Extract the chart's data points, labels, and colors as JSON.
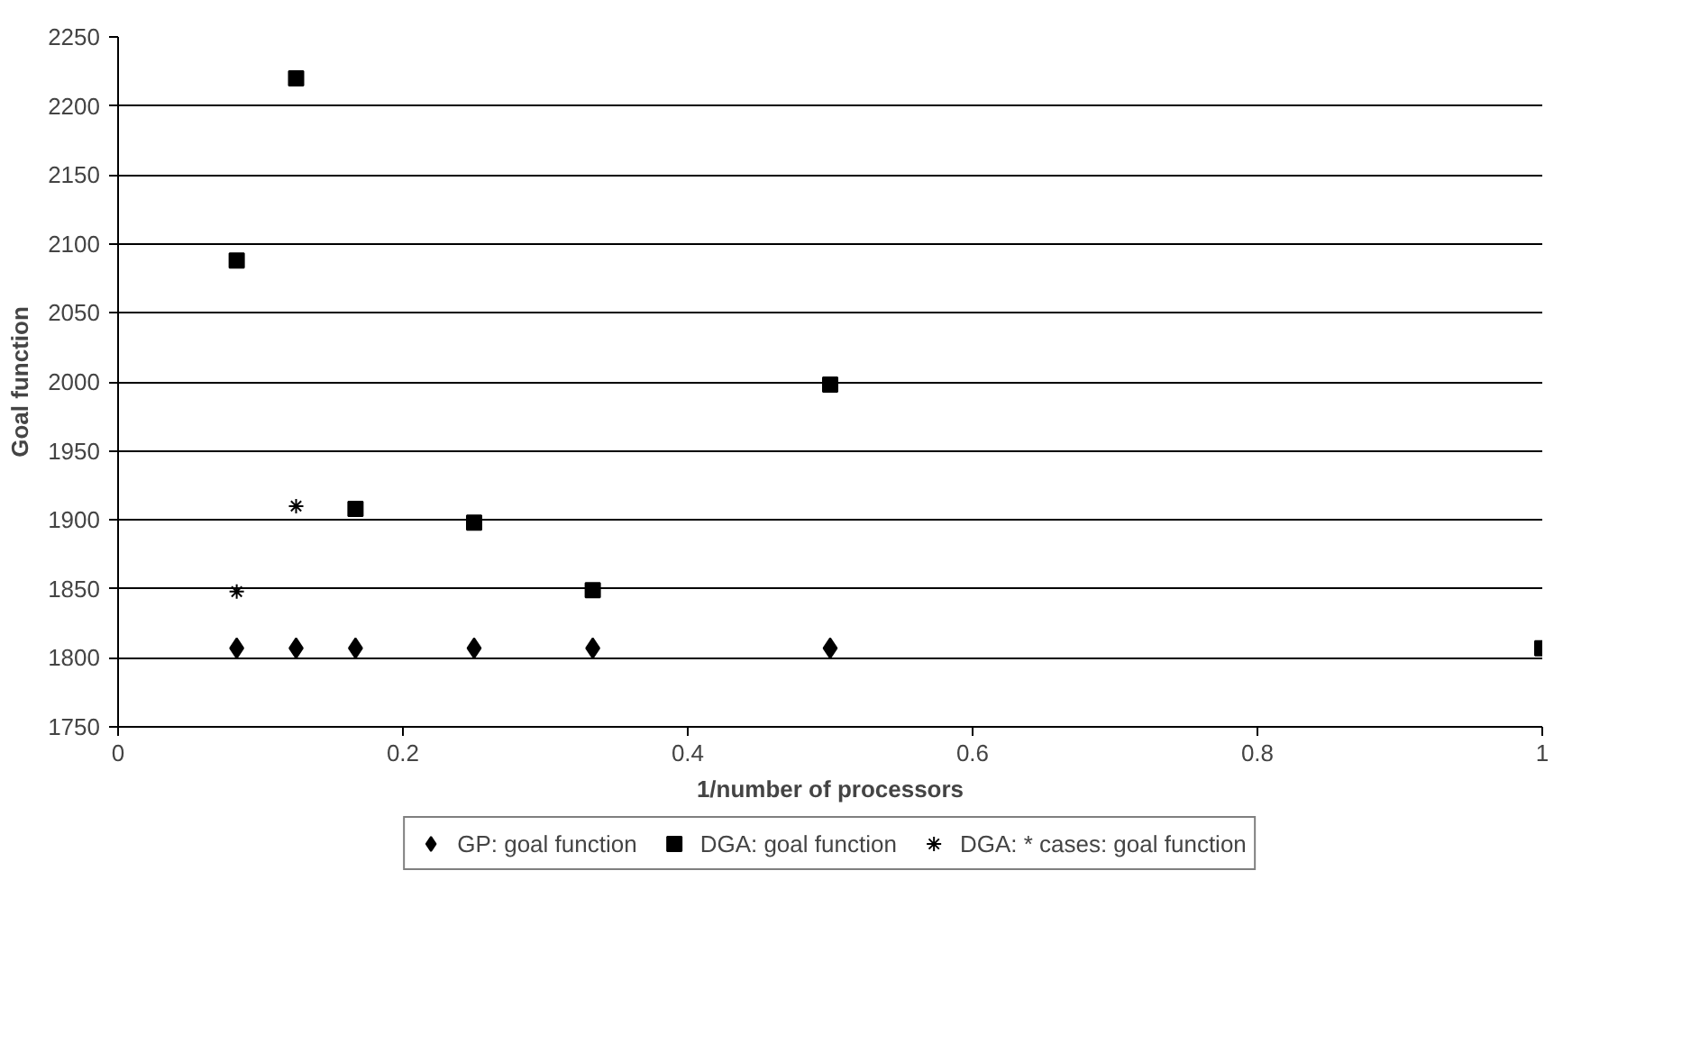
{
  "chart_data": {
    "type": "scatter",
    "xlabel": "1/number of processors",
    "ylabel": "Goal function",
    "x": [
      0.0833,
      0.125,
      0.1667,
      0.25,
      0.3333,
      0.5,
      1
    ],
    "series": [
      {
        "name": "GP: goal function",
        "color": "#000000",
        "marker": "diamond",
        "x": [
          0.0833,
          0.125,
          0.1667,
          0.25,
          0.3333,
          0.5
        ],
        "values": [
          1807,
          1807,
          1807,
          1807,
          1807,
          1807
        ]
      },
      {
        "name": "DGA: goal function",
        "color": "#000000",
        "marker": "square",
        "values": [
          2088,
          2220,
          1908,
          1898,
          1849,
          1998,
          1807
        ]
      },
      {
        "name": "DGA: * cases: goal function",
        "color": "#000000",
        "marker": "cross",
        "x": [
          0.0833,
          0.125
        ],
        "values": [
          1848,
          1910
        ]
      }
    ],
    "xlim": [
      0,
      1
    ],
    "xticks": [
      0,
      0.2,
      0.4,
      0.6,
      0.8,
      1
    ],
    "ylim": [
      1750,
      2250
    ],
    "yticks": [
      1750,
      1800,
      1850,
      1900,
      1950,
      2000,
      2050,
      2100,
      2150,
      2200,
      2250
    ],
    "grid": "y",
    "legend": "bottom"
  }
}
